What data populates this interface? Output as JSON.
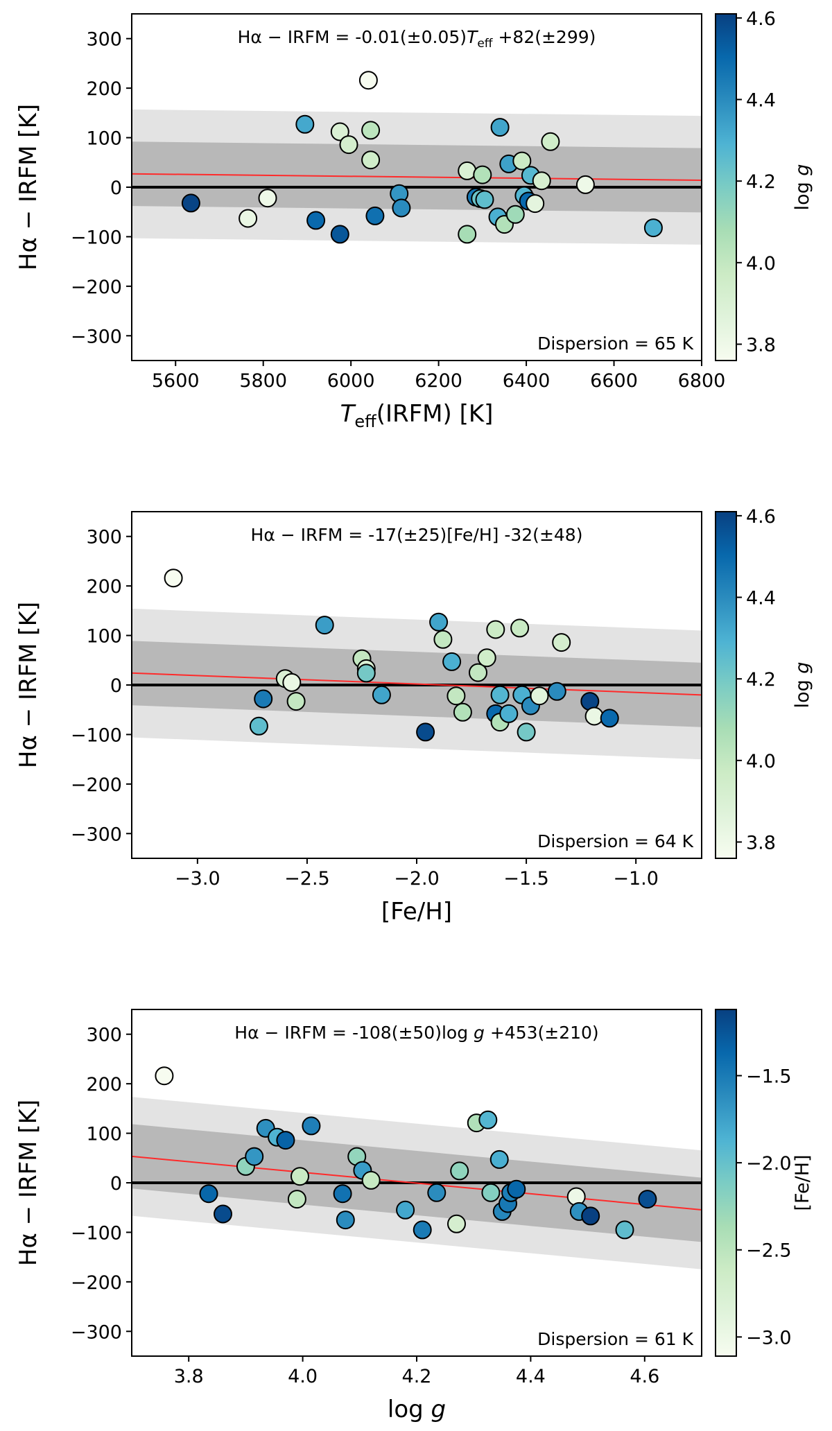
{
  "colors": {
    "cmap": [
      "#f7fcf0",
      "#e0f3db",
      "#ccebc5",
      "#a8ddb5",
      "#7bccc4",
      "#4eb3d3",
      "#2b8cbe",
      "#0868ac",
      "#084081"
    ],
    "fit_line": "#ff2a2a",
    "zero_line": "#000000",
    "band_inner": "#b8b8b8",
    "band_outer": "#e3e3e3"
  },
  "chart_data": [
    {
      "id": "teff",
      "type": "scatter",
      "xlabel": "T_eff(IRFM)  [K]",
      "xlabel_parts": {
        "T": "T",
        "sub": "eff",
        "rest": "(IRFM)  [K]"
      },
      "ylabel": "Hα − IRFM  [K]",
      "xlim": [
        5500,
        6800
      ],
      "ylim": [
        -350,
        350
      ],
      "xticks": [
        5600,
        5800,
        6000,
        6200,
        6400,
        6600,
        6800
      ],
      "xtick_labels": [
        "5600",
        "5800",
        "6000",
        "6200",
        "6400",
        "6600",
        "6800"
      ],
      "yticks": [
        -300,
        -200,
        -100,
        0,
        100,
        200,
        300
      ],
      "ytick_labels": [
        "−300",
        "−200",
        "−100",
        "0",
        "100",
        "200",
        "300"
      ],
      "equation_parts": {
        "pre": "Hα − IRFM = -0.01(±0.05)",
        "var": "T",
        "sub": "eff",
        "post": " +82(±299)"
      },
      "dispersion_label": "Dispersion = 65 K",
      "fit": {
        "slope": -0.01,
        "intercept": 82,
        "inner": 65,
        "outer": 130
      },
      "colorbar": {
        "label": "log g",
        "label_parts": {
          "pre": "log ",
          "var": "g"
        },
        "range": [
          3.76,
          4.61
        ],
        "ticks": [
          3.8,
          4.0,
          4.2,
          4.4,
          4.6
        ],
        "tick_labels": [
          "3.8",
          "4.0",
          "4.2",
          "4.4",
          "4.6"
        ]
      },
      "points": [
        {
          "x": 5635,
          "y": -32,
          "c": 4.6
        },
        {
          "x": 5765,
          "y": -63,
          "c": 3.82
        },
        {
          "x": 5810,
          "y": -22,
          "c": 3.8
        },
        {
          "x": 5895,
          "y": 127,
          "c": 4.32
        },
        {
          "x": 5920,
          "y": -67,
          "c": 4.5
        },
        {
          "x": 5975,
          "y": 112,
          "c": 3.9
        },
        {
          "x": 5975,
          "y": -95,
          "c": 4.55
        },
        {
          "x": 5995,
          "y": 86,
          "c": 3.93
        },
        {
          "x": 6040,
          "y": 216,
          "c": 3.76
        },
        {
          "x": 6045,
          "y": 115,
          "c": 4.02
        },
        {
          "x": 6045,
          "y": 55,
          "c": 3.95
        },
        {
          "x": 6055,
          "y": -58,
          "c": 4.48
        },
        {
          "x": 6110,
          "y": -13,
          "c": 4.37
        },
        {
          "x": 6115,
          "y": -42,
          "c": 4.4
        },
        {
          "x": 6265,
          "y": 33,
          "c": 3.9
        },
        {
          "x": 6265,
          "y": -95,
          "c": 4.08
        },
        {
          "x": 6285,
          "y": -20,
          "c": 4.46
        },
        {
          "x": 6295,
          "y": -23,
          "c": 4.22
        },
        {
          "x": 6300,
          "y": 25,
          "c": 4.05
        },
        {
          "x": 6305,
          "y": -25,
          "c": 4.25
        },
        {
          "x": 6340,
          "y": 121,
          "c": 4.33
        },
        {
          "x": 6335,
          "y": -60,
          "c": 4.3
        },
        {
          "x": 6350,
          "y": -75,
          "c": 4.05
        },
        {
          "x": 6360,
          "y": 47,
          "c": 4.34
        },
        {
          "x": 6375,
          "y": -55,
          "c": 4.1
        },
        {
          "x": 6390,
          "y": 53,
          "c": 3.97
        },
        {
          "x": 6395,
          "y": -17,
          "c": 4.28
        },
        {
          "x": 6410,
          "y": 24,
          "c": 4.27
        },
        {
          "x": 6405,
          "y": -28,
          "c": 4.5
        },
        {
          "x": 6420,
          "y": -33,
          "c": 3.85
        },
        {
          "x": 6435,
          "y": 13,
          "c": 3.92
        },
        {
          "x": 6455,
          "y": 92,
          "c": 3.95
        },
        {
          "x": 6535,
          "y": 5,
          "c": 3.8
        },
        {
          "x": 6690,
          "y": -82,
          "c": 4.3
        }
      ]
    },
    {
      "id": "feh",
      "type": "scatter",
      "xlabel": "[Fe/H]",
      "ylabel": "Hα − IRFM  [K]",
      "xlim": [
        -3.3,
        -0.7
      ],
      "ylim": [
        -350,
        350
      ],
      "xticks": [
        -3.0,
        -2.5,
        -2.0,
        -1.5,
        -1.0
      ],
      "xtick_labels": [
        "−3.0",
        "−2.5",
        "−2.0",
        "−1.5",
        "−1.0"
      ],
      "yticks": [
        -300,
        -200,
        -100,
        0,
        100,
        200,
        300
      ],
      "ytick_labels": [
        "−300",
        "−200",
        "−100",
        "0",
        "100",
        "200",
        "300"
      ],
      "equation_parts": {
        "pre": "Hα − IRFM = -17(±25)[Fe/H] -32(±48)",
        "var": "",
        "sub": "",
        "post": ""
      },
      "dispersion_label": "Dispersion = 64 K",
      "fit": {
        "slope": -17,
        "intercept": -32,
        "inner": 65,
        "outer": 130
      },
      "colorbar": {
        "label": "log g",
        "label_parts": {
          "pre": "log ",
          "var": "g"
        },
        "range": [
          3.76,
          4.61
        ],
        "ticks": [
          3.8,
          4.0,
          4.2,
          4.4,
          4.6
        ],
        "tick_labels": [
          "3.8",
          "4.0",
          "4.2",
          "4.4",
          "4.6"
        ]
      },
      "points": [
        {
          "x": -3.11,
          "y": 216,
          "c": 3.76
        },
        {
          "x": -2.72,
          "y": -83,
          "c": 4.25
        },
        {
          "x": -2.7,
          "y": -28,
          "c": 4.45
        },
        {
          "x": -2.6,
          "y": 13,
          "c": 3.9
        },
        {
          "x": -2.57,
          "y": 5,
          "c": 3.82
        },
        {
          "x": -2.55,
          "y": -33,
          "c": 4.0
        },
        {
          "x": -2.42,
          "y": 121,
          "c": 4.35
        },
        {
          "x": -2.25,
          "y": 53,
          "c": 4.0
        },
        {
          "x": -2.23,
          "y": 33,
          "c": 3.9
        },
        {
          "x": -2.23,
          "y": 24,
          "c": 4.2
        },
        {
          "x": -2.16,
          "y": -20,
          "c": 4.33
        },
        {
          "x": -1.96,
          "y": -95,
          "c": 4.58
        },
        {
          "x": -1.9,
          "y": 127,
          "c": 4.33
        },
        {
          "x": -1.88,
          "y": 92,
          "c": 4.0
        },
        {
          "x": -1.84,
          "y": 47,
          "c": 4.3
        },
        {
          "x": -1.82,
          "y": -22,
          "c": 4.0
        },
        {
          "x": -1.79,
          "y": -55,
          "c": 4.05
        },
        {
          "x": -1.72,
          "y": 25,
          "c": 4.0
        },
        {
          "x": -1.68,
          "y": 55,
          "c": 3.95
        },
        {
          "x": -1.64,
          "y": 112,
          "c": 3.97
        },
        {
          "x": -1.64,
          "y": -58,
          "c": 4.5
        },
        {
          "x": -1.62,
          "y": -20,
          "c": 4.28
        },
        {
          "x": -1.62,
          "y": -75,
          "c": 4.05
        },
        {
          "x": -1.58,
          "y": -58,
          "c": 4.3
        },
        {
          "x": -1.53,
          "y": 115,
          "c": 3.98
        },
        {
          "x": -1.52,
          "y": -20,
          "c": 4.3
        },
        {
          "x": -1.5,
          "y": -95,
          "c": 4.2
        },
        {
          "x": -1.48,
          "y": -42,
          "c": 4.4
        },
        {
          "x": -1.44,
          "y": -22,
          "c": 3.86
        },
        {
          "x": -1.36,
          "y": -13,
          "c": 4.4
        },
        {
          "x": -1.34,
          "y": 86,
          "c": 3.93
        },
        {
          "x": -1.21,
          "y": -33,
          "c": 4.6
        },
        {
          "x": -1.19,
          "y": -63,
          "c": 3.82
        },
        {
          "x": -1.12,
          "y": -67,
          "c": 4.5
        }
      ]
    },
    {
      "id": "logg",
      "type": "scatter",
      "xlabel": "log g",
      "xlabel_parts": {
        "pre": "log ",
        "var": "g"
      },
      "ylabel": "Hα − IRFM  [K]",
      "xlim": [
        3.7,
        4.7
      ],
      "ylim": [
        -350,
        350
      ],
      "xticks": [
        3.8,
        4.0,
        4.2,
        4.4,
        4.6
      ],
      "xtick_labels": [
        "3.8",
        "4.0",
        "4.2",
        "4.4",
        "4.6"
      ],
      "yticks": [
        -300,
        -200,
        -100,
        0,
        100,
        200,
        300
      ],
      "ytick_labels": [
        "−300",
        "−200",
        "−100",
        "0",
        "100",
        "200",
        "300"
      ],
      "equation_parts": {
        "pre": "Hα − IRFM = -108(±50)log ",
        "var": "g",
        "sub": "",
        "post": " +453(±210)"
      },
      "dispersion_label": "Dispersion = 61 K",
      "fit": {
        "slope": -108,
        "intercept": 453,
        "inner": 65,
        "outer": 120
      },
      "colorbar": {
        "label": "[Fe/H]",
        "range": [
          -3.11,
          -1.12
        ],
        "ticks": [
          -3.0,
          -2.5,
          -2.0,
          -1.5
        ],
        "tick_labels": [
          "−3.0",
          "−2.5",
          "−2.0",
          "−1.5"
        ]
      },
      "points": [
        {
          "x": 3.757,
          "y": 216,
          "c": -3.11
        },
        {
          "x": 3.835,
          "y": -22,
          "c": -1.36
        },
        {
          "x": 3.86,
          "y": -63,
          "c": -1.19
        },
        {
          "x": 3.9,
          "y": 33,
          "c": -2.23
        },
        {
          "x": 3.915,
          "y": 53,
          "c": -1.68
        },
        {
          "x": 3.935,
          "y": 110,
          "c": -1.64
        },
        {
          "x": 3.955,
          "y": 92,
          "c": -1.88
        },
        {
          "x": 3.97,
          "y": 86,
          "c": -1.34
        },
        {
          "x": 3.99,
          "y": -33,
          "c": -2.55
        },
        {
          "x": 3.995,
          "y": 13,
          "c": -2.6
        },
        {
          "x": 4.015,
          "y": 115,
          "c": -1.53
        },
        {
          "x": 4.07,
          "y": -22,
          "c": -1.44
        },
        {
          "x": 4.075,
          "y": -75,
          "c": -1.62
        },
        {
          "x": 4.095,
          "y": 53,
          "c": -2.25
        },
        {
          "x": 4.105,
          "y": 25,
          "c": -1.72
        },
        {
          "x": 4.12,
          "y": 5,
          "c": -2.57
        },
        {
          "x": 4.18,
          "y": -55,
          "c": -1.79
        },
        {
          "x": 4.21,
          "y": -95,
          "c": -1.5
        },
        {
          "x": 4.235,
          "y": -20,
          "c": -1.62
        },
        {
          "x": 4.27,
          "y": -83,
          "c": -2.72
        },
        {
          "x": 4.275,
          "y": 24,
          "c": -2.23
        },
        {
          "x": 4.305,
          "y": 121,
          "c": -2.42
        },
        {
          "x": 4.325,
          "y": 127,
          "c": -1.9
        },
        {
          "x": 4.33,
          "y": -20,
          "c": -2.16
        },
        {
          "x": 4.345,
          "y": 47,
          "c": -1.84
        },
        {
          "x": 4.35,
          "y": -58,
          "c": -1.58
        },
        {
          "x": 4.36,
          "y": -42,
          "c": -1.48
        },
        {
          "x": 4.365,
          "y": -20,
          "c": -1.52
        },
        {
          "x": 4.375,
          "y": -13,
          "c": -1.36
        },
        {
          "x": 4.48,
          "y": -28,
          "c": -3.0
        },
        {
          "x": 4.485,
          "y": -58,
          "c": -1.64
        },
        {
          "x": 4.505,
          "y": -67,
          "c": -1.12
        },
        {
          "x": 4.565,
          "y": -95,
          "c": -1.96
        },
        {
          "x": 4.605,
          "y": -33,
          "c": -1.21
        }
      ]
    }
  ]
}
